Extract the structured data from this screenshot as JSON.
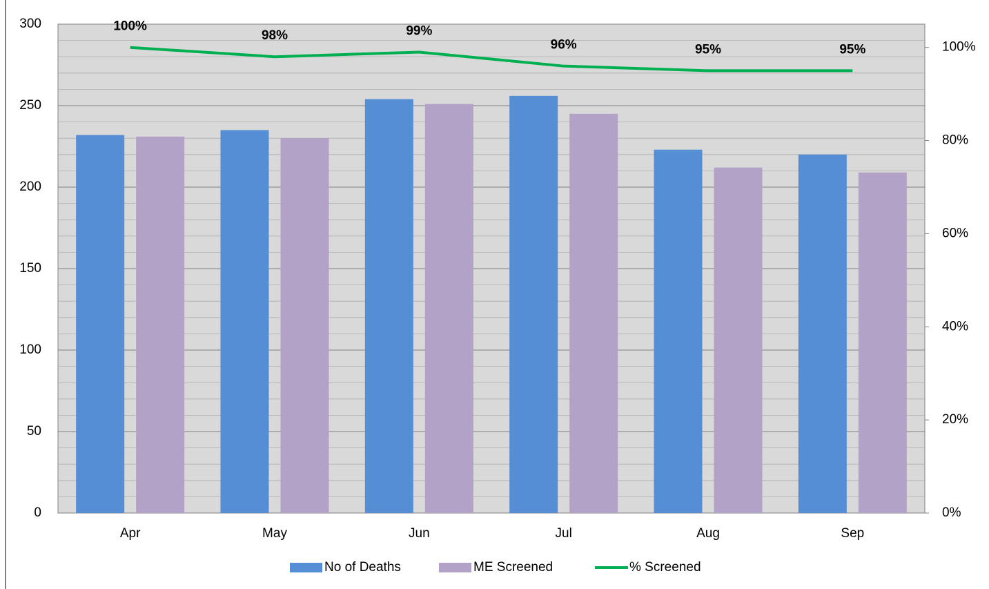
{
  "chart_data": {
    "type": "bar-line",
    "categories": [
      "Apr",
      "May",
      "Jun",
      "Jul",
      "Aug",
      "Sep"
    ],
    "series": [
      {
        "name": "No of Deaths",
        "color": "#558ed5",
        "type": "bar",
        "values": [
          232,
          235,
          254,
          256,
          223,
          220
        ]
      },
      {
        "name": "ME Screened",
        "color": "#b3a2c7",
        "type": "bar",
        "values": [
          231,
          230,
          251,
          245,
          212,
          209
        ]
      },
      {
        "name": "% Screened",
        "color": "#00b050",
        "type": "line",
        "axis": "y2",
        "values": [
          100,
          98,
          99,
          96,
          95,
          95
        ],
        "value_labels": [
          "100%",
          "98%",
          "99%",
          "96%",
          "95%",
          "95%"
        ]
      }
    ],
    "ylim": [
      0,
      300
    ],
    "yticks": [
      0,
      50,
      100,
      150,
      200,
      250,
      300
    ],
    "y2lim": [
      0,
      105
    ],
    "y2ticks": [
      {
        "value": 0,
        "label": "0%"
      },
      {
        "value": 20,
        "label": "20%"
      },
      {
        "value": 40,
        "label": "40%"
      },
      {
        "value": 60,
        "label": "60%"
      },
      {
        "value": 80,
        "label": "80%"
      },
      {
        "value": 100,
        "label": "100%"
      }
    ],
    "grid": true,
    "legend": "bottom"
  }
}
